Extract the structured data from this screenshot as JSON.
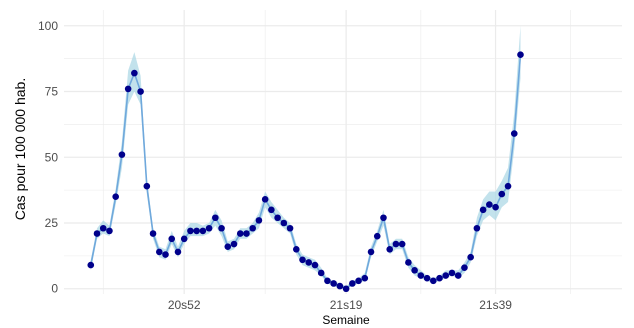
{
  "chart_data": {
    "type": "line",
    "title": "",
    "xlabel": "Semaine",
    "ylabel": "Cas pour 100 000 hab.",
    "ylim": [
      -2,
      106
    ],
    "y_ticks": [
      0,
      25,
      50,
      75,
      100
    ],
    "x_tick_labels": [
      "20s52",
      "21s19",
      "21s39"
    ],
    "x_tick_positions": [
      20,
      46,
      70
    ],
    "x_range": [
      0.7,
      90.3
    ],
    "grid": true,
    "colors": {
      "line": "#6fa8dc",
      "band": "#add8e6",
      "point": "#00008b",
      "grid": "#ebebeb"
    },
    "series": [
      {
        "x": [
          1,
          2,
          3,
          4,
          5,
          6,
          7,
          8,
          9,
          10,
          11,
          12,
          13,
          14,
          15,
          16,
          17,
          18,
          19,
          20,
          21,
          22,
          23,
          24,
          25,
          26,
          27,
          28,
          29,
          30,
          31,
          32,
          33,
          34,
          35,
          36,
          37,
          38,
          39,
          40,
          41,
          42,
          43,
          44,
          45,
          46,
          47,
          48,
          49,
          50,
          51,
          52,
          53,
          54,
          55,
          56,
          57,
          58,
          59,
          60,
          61,
          62,
          63,
          64,
          65,
          66,
          67,
          68,
          69,
          70,
          71,
          72,
          73,
          74,
          75,
          76,
          77,
          78,
          79,
          80,
          81,
          82,
          83,
          84,
          85,
          86,
          87,
          88,
          89,
          90
        ],
        "values": [
          null,
          null,
          null,
          null,
          9,
          21,
          23,
          22,
          35,
          51,
          76,
          82,
          75,
          39,
          21,
          14,
          13,
          19,
          14,
          19,
          22,
          22,
          22,
          23,
          27,
          23,
          16,
          17,
          21,
          21,
          23,
          26,
          34,
          30,
          27,
          25,
          23,
          15,
          11,
          10,
          9,
          6,
          3,
          2,
          1,
          0,
          2,
          3,
          4,
          14,
          20,
          27,
          15,
          17,
          17,
          10,
          7,
          5,
          4,
          3,
          4,
          5,
          6,
          5,
          8,
          12,
          23,
          30,
          32,
          31,
          36,
          39,
          59,
          89,
          null,
          null,
          null,
          null,
          null,
          null,
          null,
          null,
          null,
          null,
          null,
          null,
          null,
          null,
          null,
          null
        ],
        "lower": [
          null,
          null,
          null,
          null,
          7,
          19,
          21,
          20,
          32,
          46,
          70,
          75,
          70,
          36,
          19,
          12,
          11,
          17,
          12,
          17,
          20,
          20,
          20,
          21,
          24,
          20,
          14,
          15,
          19,
          19,
          21,
          23,
          31,
          27,
          25,
          23,
          21,
          13,
          9,
          8,
          7,
          5,
          2,
          1,
          0,
          0,
          1,
          2,
          3,
          12,
          18,
          24,
          13,
          15,
          15,
          8,
          5,
          4,
          3,
          2,
          3,
          4,
          5,
          4,
          6,
          10,
          20,
          26,
          28,
          26,
          31,
          33,
          53,
          80,
          null,
          null,
          null,
          null,
          null,
          null,
          null,
          null,
          null,
          null,
          null,
          null,
          null,
          null,
          null,
          null
        ],
        "upper": [
          null,
          null,
          null,
          null,
          11,
          23,
          26,
          24,
          38,
          56,
          83,
          90,
          81,
          42,
          23,
          16,
          15,
          22,
          16,
          22,
          25,
          25,
          24,
          25,
          30,
          26,
          18,
          19,
          23,
          23,
          25,
          29,
          37,
          33,
          30,
          27,
          25,
          17,
          13,
          12,
          11,
          8,
          4,
          3,
          2,
          1,
          3,
          4,
          6,
          16,
          22,
          30,
          17,
          19,
          19,
          12,
          9,
          7,
          5,
          4,
          5,
          7,
          7,
          7,
          10,
          14,
          27,
          34,
          37,
          37,
          41,
          46,
          67,
          100,
          null,
          null,
          null,
          null,
          null,
          null,
          null,
          null,
          null,
          null,
          null,
          null,
          null,
          null,
          null,
          null
        ]
      }
    ]
  }
}
